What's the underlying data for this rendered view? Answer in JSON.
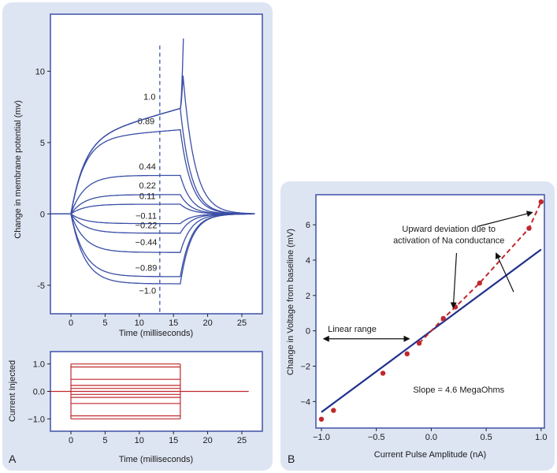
{
  "colors": {
    "panel_bg": "#dde5f3",
    "frame": "#3f51a8",
    "trace": "#3a4ea6",
    "current": "#c0282c",
    "dashed": "#3a5aa6",
    "fit_line": "#1f2f8c",
    "dev_line": "#c0282c",
    "point": "#c0282c"
  },
  "chart_data": [
    {
      "type": "line",
      "panel": "A",
      "subplot": "voltage",
      "xlabel": "Time (milliseconds)",
      "ylabel": "Change in membrane potential (mv)",
      "xlim": [
        -3,
        28
      ],
      "ylim": [
        -7,
        14
      ],
      "xticks": [
        0,
        5,
        10,
        15,
        20,
        25
      ],
      "yticks": [
        -5,
        0,
        5,
        10
      ],
      "pulse": {
        "start": 0,
        "end": 16
      },
      "marker_time": 13,
      "series": [
        {
          "name": "1.0",
          "plateau": 7.4,
          "label_x": 11.5,
          "label_y": 8.0
        },
        {
          "name": "0.89",
          "plateau": 5.9,
          "label_x": 11.0,
          "label_y": 6.3
        },
        {
          "name": "0.44",
          "plateau": 2.7,
          "label_x": 11.2,
          "label_y": 3.1
        },
        {
          "name": "0.22",
          "plateau": 1.35,
          "label_x": 11.2,
          "label_y": 1.8
        },
        {
          "name": "0.11",
          "plateau": 0.68,
          "label_x": 11.2,
          "label_y": 1.05
        },
        {
          "name": "−0.11",
          "plateau": -0.68,
          "label_x": 11.0,
          "label_y": -0.35
        },
        {
          "name": "−0.22",
          "plateau": -1.35,
          "label_x": 11.0,
          "label_y": -1.0
        },
        {
          "name": "−0.44",
          "plateau": -2.7,
          "label_x": 11.0,
          "label_y": -2.2
        },
        {
          "name": "−0.89",
          "plateau": -4.4,
          "label_x": 11.0,
          "label_y": -4.0
        },
        {
          "name": "−1.0",
          "plateau": -4.9,
          "label_x": 11.2,
          "label_y": -5.6
        }
      ],
      "threshold_traces": [
        {
          "peak": 9.7,
          "peak_time": 16.4
        },
        {
          "peak": 13.2,
          "peak_time": 16.5
        }
      ]
    },
    {
      "type": "line",
      "panel": "A",
      "subplot": "current",
      "xlabel": "Time (milliseconds)",
      "ylabel": "Current Injected",
      "xlim": [
        -3,
        28
      ],
      "ylim": [
        -1.45,
        1.45
      ],
      "xticks": [
        0,
        5,
        10,
        15,
        20,
        25
      ],
      "yticks": [
        -1.0,
        0.0,
        1.0
      ],
      "ytick_labels": [
        "−1.0",
        "0.0",
        "1.0"
      ],
      "pulse": {
        "start": 0,
        "end": 16
      },
      "baseline_end": 26,
      "levels": [
        1.0,
        0.89,
        0.44,
        0.22,
        0.11,
        -0.11,
        -0.22,
        -0.44,
        -0.89,
        -1.0
      ]
    },
    {
      "type": "scatter",
      "panel": "B",
      "xlabel": "Current Pulse Amplitude (nA)",
      "ylabel": "Change in Voltage from baseline (mV)",
      "xlim": [
        -1.05,
        1.03
      ],
      "ylim": [
        -5.5,
        7.7
      ],
      "xticks": [
        -1.0,
        -0.5,
        0.0,
        0.5,
        1.0
      ],
      "xtick_labels": [
        "−1.0",
        "−0.5",
        "0.0",
        "0.5",
        "1.0"
      ],
      "yticks": [
        -4,
        -2,
        0,
        2,
        4,
        6
      ],
      "ytick_labels": [
        "−4",
        "−2",
        "0",
        "2",
        "4",
        "6"
      ],
      "x": [
        -1.0,
        -0.89,
        -0.44,
        -0.22,
        -0.11,
        0.11,
        0.22,
        0.44,
        0.89,
        1.0
      ],
      "y": [
        -5.0,
        -4.5,
        -2.4,
        -1.3,
        -0.7,
        0.7,
        1.35,
        2.7,
        5.8,
        7.3
      ],
      "fit": {
        "slope": 4.6,
        "x_range": [
          -1.0,
          1.0
        ]
      },
      "annotations": {
        "deviation": [
          "Upward deviation due to",
          "activation of Na conductance"
        ],
        "linear": "Linear range",
        "slope": "Slope = 4.6 MegaOhms"
      }
    }
  ],
  "panel_labels": {
    "a": "A",
    "b": "B"
  }
}
